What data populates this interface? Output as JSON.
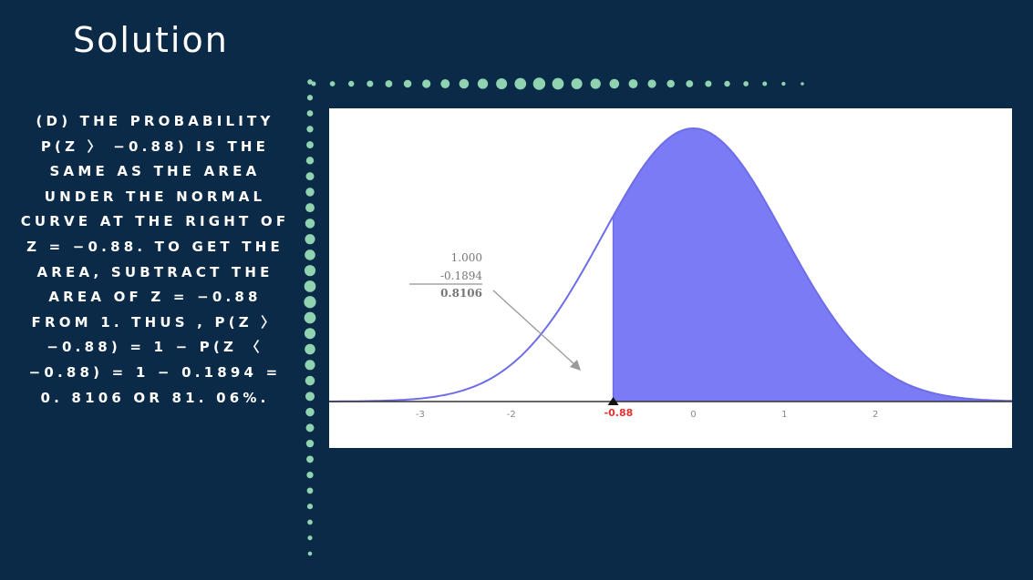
{
  "slide": {
    "title": "Solution",
    "body_text": "(D) THE PROBABILITY P(Z 〉 −0.88) IS THE SAME AS THE AREA UNDER THE NORMAL CURVE AT THE RIGHT OF z = −0.88. TO GET THE AREA, SUBTRACT THE AREA OF z = −0.88 FROM 1. THUS , P(Z 〉 −0.88) = 1 − P(Z 〈 −0.88) = 1 − 0.1894 = 0. 8106 or 81. 06%."
  },
  "colors": {
    "background": "#0b2a47",
    "dot_accent": "#8fd3b1",
    "shaded_area": "#7b7bf6",
    "curve_line": "#6d6de8",
    "marker": "#e53030"
  },
  "chart_data": {
    "type": "area",
    "x_ticks": [
      "-3",
      "-2",
      "",
      "0",
      "1",
      "2"
    ],
    "xlim": [
      -4,
      3.5
    ],
    "z_marker": -0.88,
    "z_marker_label": "-0.88",
    "shade_from": -0.88,
    "annotation": [
      "1.000",
      "-0.1894",
      "0.8106"
    ],
    "grid": false
  }
}
